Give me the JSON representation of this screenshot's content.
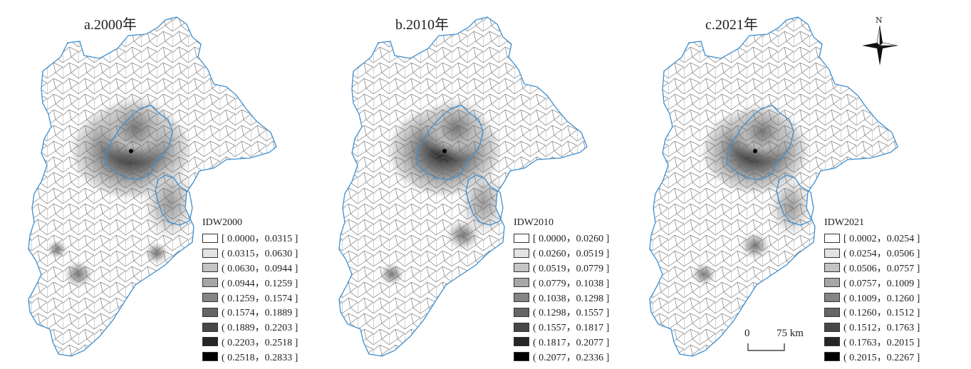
{
  "panels": [
    {
      "title": "a.2000年",
      "legend_title": "IDW2000",
      "classes": [
        {
          "range": "[ 0.0000，0.0315 ]",
          "color": "#ffffff"
        },
        {
          "range": "( 0.0315，0.0630 ]",
          "color": "#e3e3e3"
        },
        {
          "range": "( 0.0630，0.0944 ]",
          "color": "#c4c4c4"
        },
        {
          "range": "( 0.0944，0.1259 ]",
          "color": "#a6a6a6"
        },
        {
          "range": "( 0.1259，0.1574 ]",
          "color": "#858585"
        },
        {
          "range": "( 0.1574，0.1889 ]",
          "color": "#666666"
        },
        {
          "range": "( 0.1889，0.2203 ]",
          "color": "#474747"
        },
        {
          "range": "( 0.2203，0.2518 ]",
          "color": "#262626"
        },
        {
          "range": "( 0.2518，0.2833 ]",
          "color": "#000000"
        }
      ]
    },
    {
      "title": "b.2010年",
      "legend_title": "IDW2010",
      "classes": [
        {
          "range": "[ 0.0000，0.0260 ]",
          "color": "#ffffff"
        },
        {
          "range": "( 0.0260，0.0519 ]",
          "color": "#e3e3e3"
        },
        {
          "range": "( 0.0519，0.0779 ]",
          "color": "#c4c4c4"
        },
        {
          "range": "( 0.0779，0.1038 ]",
          "color": "#a6a6a6"
        },
        {
          "range": "( 0.1038，0.1298 ]",
          "color": "#858585"
        },
        {
          "range": "( 0.1298，0.1557 ]",
          "color": "#666666"
        },
        {
          "range": "( 0.1557，0.1817 ]",
          "color": "#474747"
        },
        {
          "range": "( 0.1817，0.2077 ]",
          "color": "#262626"
        },
        {
          "range": "( 0.2077，0.2336 ]",
          "color": "#000000"
        }
      ]
    },
    {
      "title": "c.2021年",
      "legend_title": "IDW2021",
      "classes": [
        {
          "range": "[ 0.0002，0.0254 ]",
          "color": "#ffffff"
        },
        {
          "range": "( 0.0254，0.0506 ]",
          "color": "#e3e3e3"
        },
        {
          "range": "( 0.0506，0.0757 ]",
          "color": "#c4c4c4"
        },
        {
          "range": "( 0.0757，0.1009 ]",
          "color": "#a6a6a6"
        },
        {
          "range": "( 0.1009，0.1260 ]",
          "color": "#858585"
        },
        {
          "range": "( 0.1260，0.1512 ]",
          "color": "#666666"
        },
        {
          "range": "( 0.1512，0.1763 ]",
          "color": "#474747"
        },
        {
          "range": "( 0.1763，0.2015 ]",
          "color": "#262626"
        },
        {
          "range": "( 0.2015，0.2267 ]",
          "color": "#000000"
        }
      ]
    }
  ],
  "scale": {
    "zero": "0",
    "distance": "75 km"
  },
  "north_label": "N",
  "colors": {
    "province_border": "#3d8fd1",
    "county_border": "#555555"
  }
}
